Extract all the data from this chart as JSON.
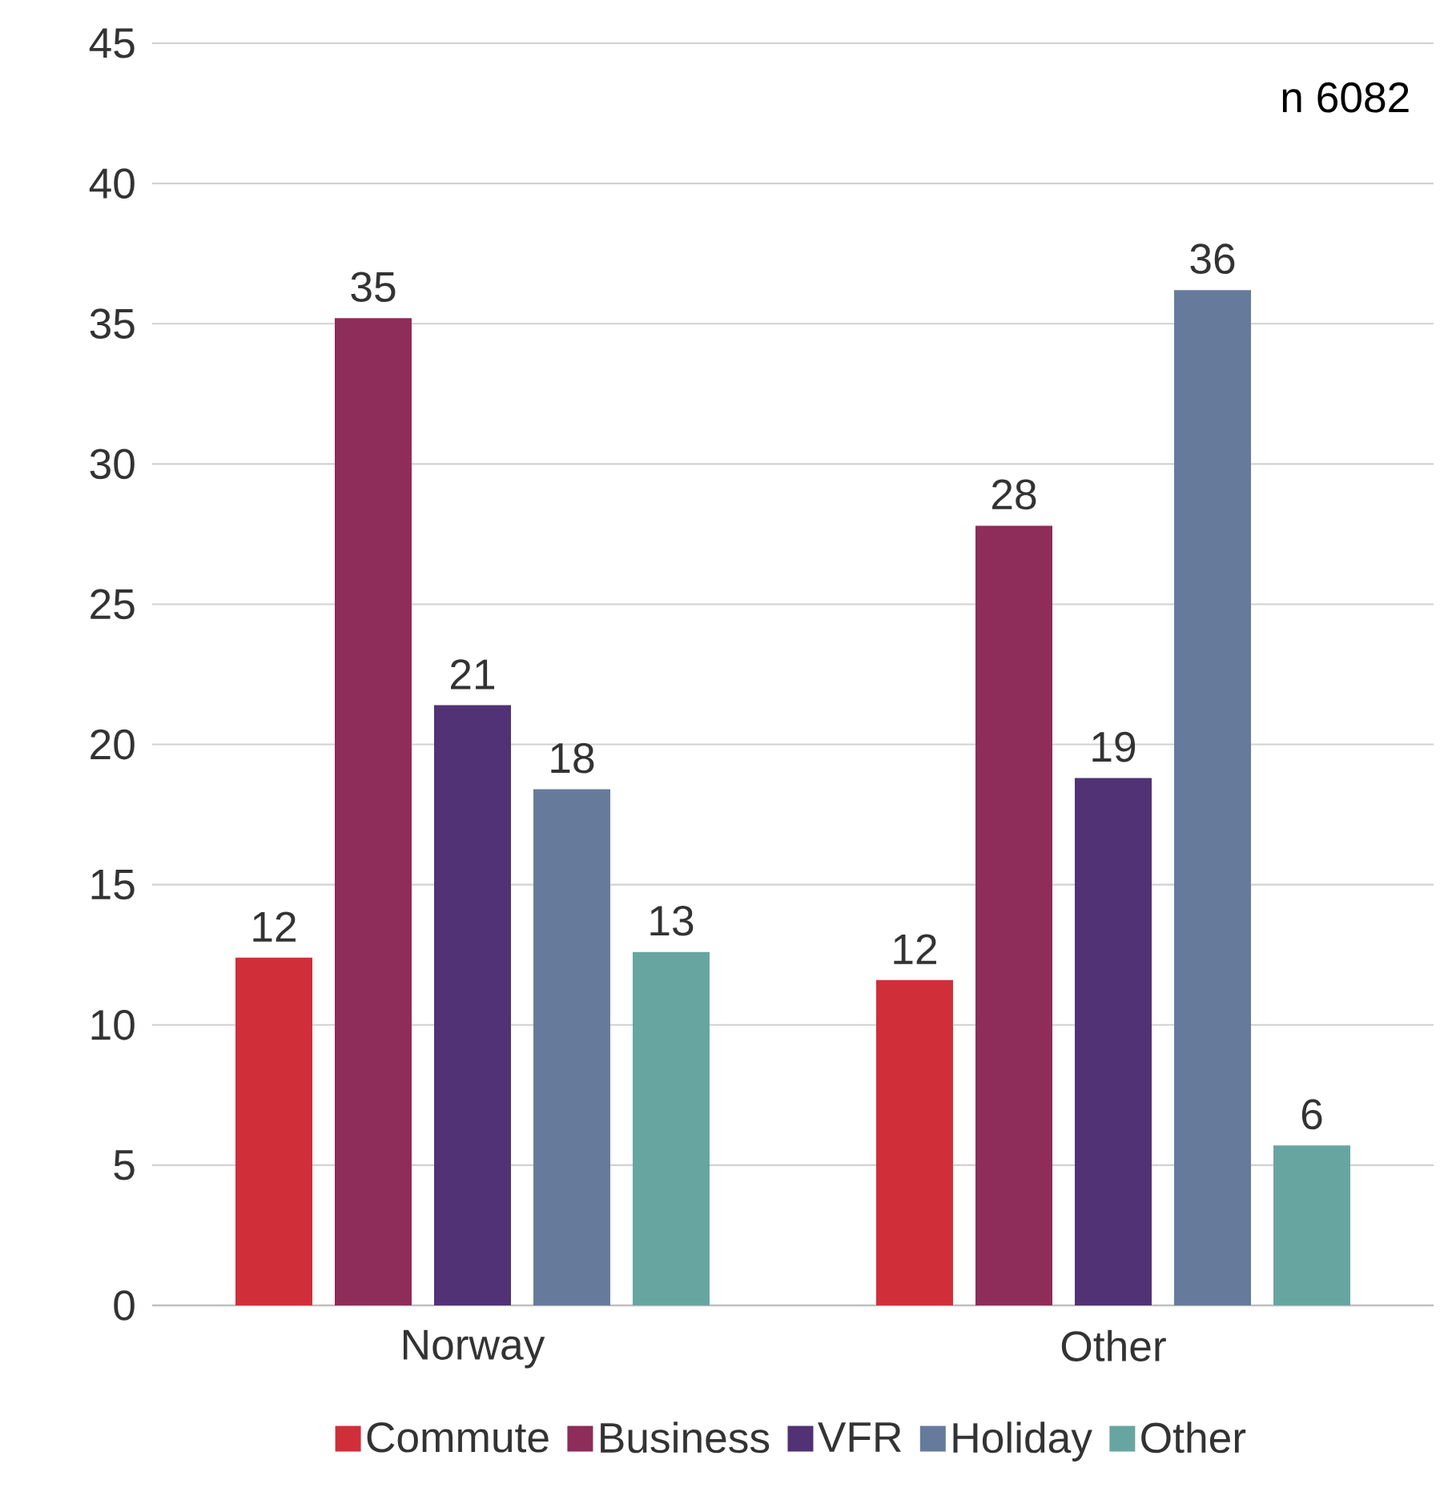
{
  "chart_data": {
    "type": "bar",
    "categories": [
      "Norway",
      "Other"
    ],
    "series": [
      {
        "name": "Commute",
        "color": "#d02f3a",
        "values": [
          12.4,
          11.6
        ],
        "value_labels": [
          "12",
          "12"
        ]
      },
      {
        "name": "Business",
        "color": "#8e2c5a",
        "values": [
          35.2,
          27.8
        ],
        "value_labels": [
          "35",
          "28"
        ]
      },
      {
        "name": "VFR",
        "color": "#513275",
        "values": [
          21.4,
          18.8
        ],
        "value_labels": [
          "21",
          "19"
        ]
      },
      {
        "name": "Holiday",
        "color": "#667b9c",
        "values": [
          18.4,
          36.2
        ],
        "value_labels": [
          "18",
          "36"
        ]
      },
      {
        "name": "Other",
        "color": "#67a6a0",
        "values": [
          12.6,
          5.7
        ],
        "value_labels": [
          "13",
          "6"
        ]
      }
    ],
    "ylim": [
      0,
      45
    ],
    "yticks": [
      0,
      5,
      10,
      15,
      20,
      25,
      30,
      35,
      40,
      45
    ],
    "grid": "y",
    "legend": "bottom",
    "annotations": [
      "n 6082"
    ]
  }
}
